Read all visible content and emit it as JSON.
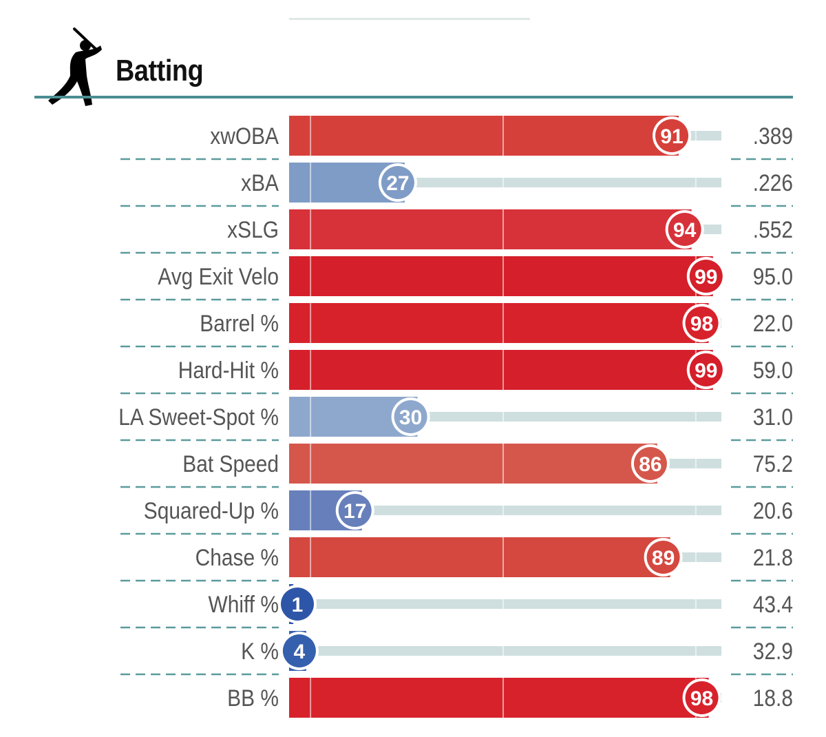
{
  "section": {
    "title": "Batting",
    "icon": "batter-silhouette-icon"
  },
  "colors": {
    "accent_rule": "#4a8d91",
    "track": "#cfdfdf",
    "dash": "#5a9a9c"
  },
  "chart_data": {
    "type": "bar",
    "orientation": "horizontal",
    "title": "Batting",
    "xlim": [
      0,
      100
    ],
    "categories": [
      "xwOBA",
      "xBA",
      "xSLG",
      "Avg Exit Velo",
      "Barrel %",
      "Hard-Hit %",
      "LA Sweet-Spot %",
      "Bat Speed",
      "Squared-Up %",
      "Chase %",
      "Whiff %",
      "K %",
      "BB %"
    ],
    "percentiles": [
      91,
      27,
      94,
      99,
      98,
      99,
      30,
      86,
      17,
      89,
      1,
      4,
      98
    ],
    "values": [
      ".389",
      ".226",
      ".552",
      "95.0",
      "22.0",
      "59.0",
      "31.0",
      "75.2",
      "20.6",
      "21.8",
      "43.4",
      "32.9",
      "18.8"
    ],
    "bar_colors": [
      "#d6403a",
      "#7f9cc6",
      "#d7313a",
      "#d51f2a",
      "#d7222c",
      "#d51f2a",
      "#8ea8cd",
      "#d5574c",
      "#6780bb",
      "#d4483f",
      "#2e56a8",
      "#3460ae",
      "#d7222c"
    ]
  }
}
